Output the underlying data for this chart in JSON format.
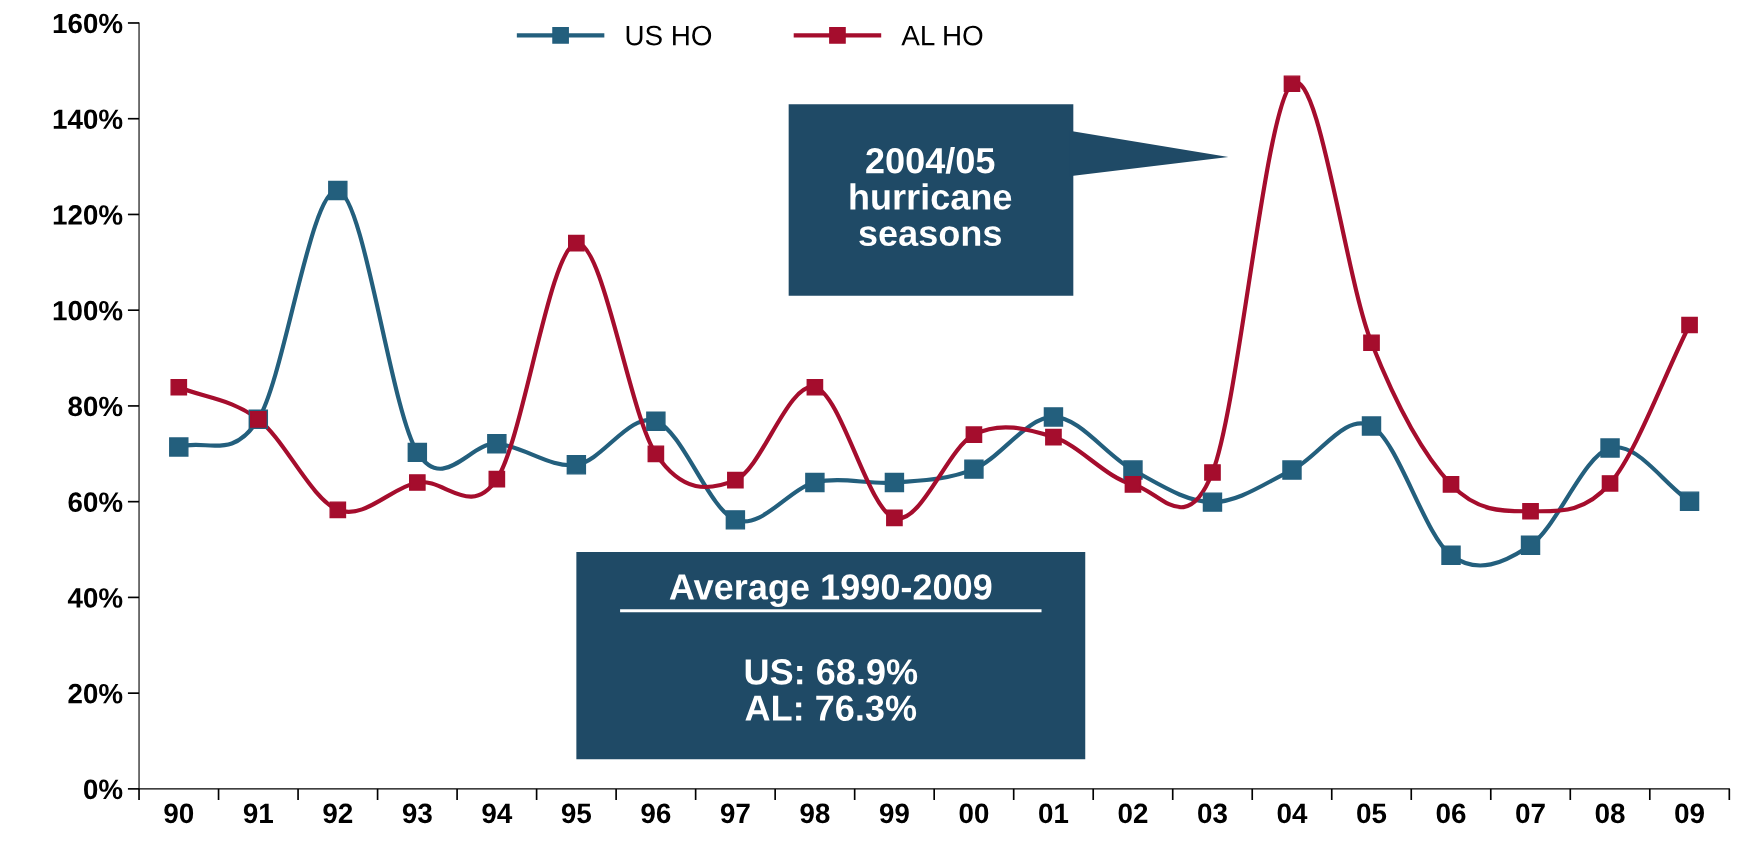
{
  "chart_data": {
    "type": "line",
    "categories": [
      "90",
      "91",
      "92",
      "93",
      "94",
      "95",
      "96",
      "97",
      "98",
      "99",
      "00",
      "01",
      "02",
      "03",
      "04",
      "05",
      "06",
      "07",
      "08",
      "09"
    ],
    "series": [
      {
        "name": "US HO",
        "color": "#235f7d",
        "values": [
          71.4,
          77.2,
          125,
          70.3,
          72.1,
          67.7,
          76.8,
          56.2,
          64,
          64,
          66.8,
          77.7,
          66.6,
          59.9,
          66.6,
          75.8,
          48.8,
          50.9,
          71.2,
          60.1
        ]
      },
      {
        "name": "AL HO",
        "color": "#a50d2d",
        "values": [
          83.9,
          77.2,
          58.3,
          64,
          64.7,
          114,
          70,
          64.5,
          83.9,
          56.6,
          74,
          73.5,
          63.6,
          66.1,
          147.3,
          93.2,
          63.6,
          58,
          63.8,
          96.9
        ]
      }
    ],
    "ylim": [
      0,
      160
    ],
    "yticks": [
      {
        "value": 0,
        "label": "0%"
      },
      {
        "value": 20,
        "label": "20%"
      },
      {
        "value": 40,
        "label": "40%"
      },
      {
        "value": 60,
        "label": "60%"
      },
      {
        "value": 80,
        "label": "80%"
      },
      {
        "value": 100,
        "label": "100%"
      },
      {
        "value": 120,
        "label": "120%"
      },
      {
        "value": 140,
        "label": "140%"
      },
      {
        "value": 160,
        "label": "160%"
      }
    ],
    "annotations": [
      "2004/05\nhurricane\nseasons",
      "Average 1990-2009",
      "US: 68.9%\nAL: 76.3%"
    ],
    "marker": "square",
    "line_style": "solid",
    "grid": false,
    "legend": "top"
  }
}
